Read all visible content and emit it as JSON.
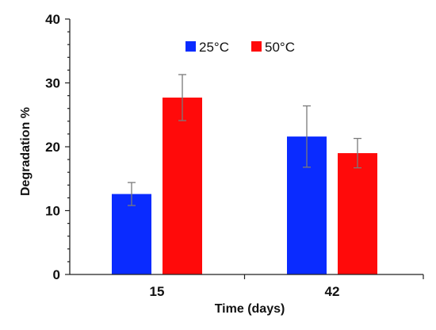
{
  "chart_data": {
    "type": "bar",
    "title": "",
    "xlabel": "Time (days)",
    "ylabel": "Degradation %",
    "categories": [
      "15",
      "42"
    ],
    "ylim": [
      0,
      40
    ],
    "yticks": [
      0,
      10,
      20,
      30,
      40
    ],
    "grid": false,
    "legend_position": "top-center",
    "error_bars": true,
    "series": [
      {
        "name": "25°C",
        "color": "#0a2bff",
        "values": [
          12.6,
          21.6
        ],
        "errors": [
          1.8,
          4.8
        ]
      },
      {
        "name": "50°C",
        "color": "#ff0a0a",
        "values": [
          27.7,
          19.0
        ],
        "errors": [
          3.6,
          2.3
        ]
      }
    ]
  }
}
